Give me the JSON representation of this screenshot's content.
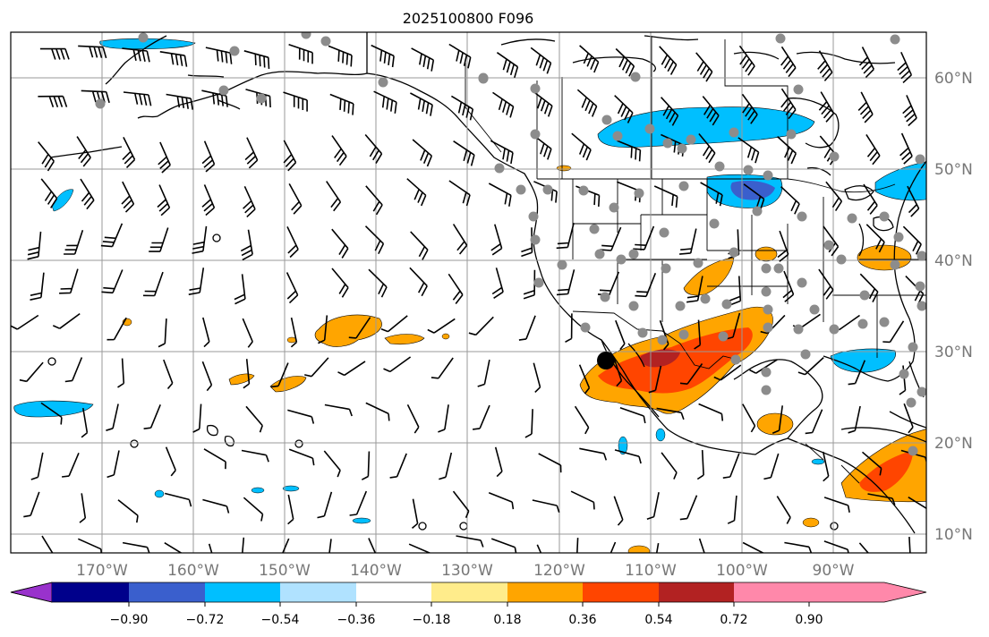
{
  "title": "2025100800 F096",
  "lon_labels": [
    "170°W",
    "160°W",
    "150°W",
    "140°W",
    "130°W",
    "120°W",
    "110°W",
    "100°W",
    "90°W"
  ],
  "lat_labels": [
    "60°N",
    "50°N",
    "40°N",
    "30°N",
    "20°N",
    "10°N"
  ],
  "colorbar": {
    "tick_labels": [
      "−0.90",
      "−0.72",
      "−0.54",
      "−0.36",
      "−0.18",
      "0.18",
      "0.36",
      "0.54",
      "0.72",
      "0.90"
    ],
    "colors": [
      "#9932cc",
      "#00008b",
      "#3a5fcd",
      "#00bfff",
      "#b0e2ff",
      "#ffffff",
      "#ffec8b",
      "#ffa500",
      "#ff4500",
      "#b22222",
      "#ff88aa"
    ]
  },
  "map": {
    "extent_lon": [
      -180,
      -80
    ],
    "extent_lat": [
      8,
      65
    ],
    "anomaly_colors": {
      "neg_light": "#b0e2ff",
      "neg_mid": "#00bfff",
      "neg_strong": "#3a5fcd",
      "pos_light": "#ffec8b",
      "pos_mid": "#ffa500",
      "pos_strong": "#ff4500",
      "pos_max": "#b22222"
    }
  }
}
